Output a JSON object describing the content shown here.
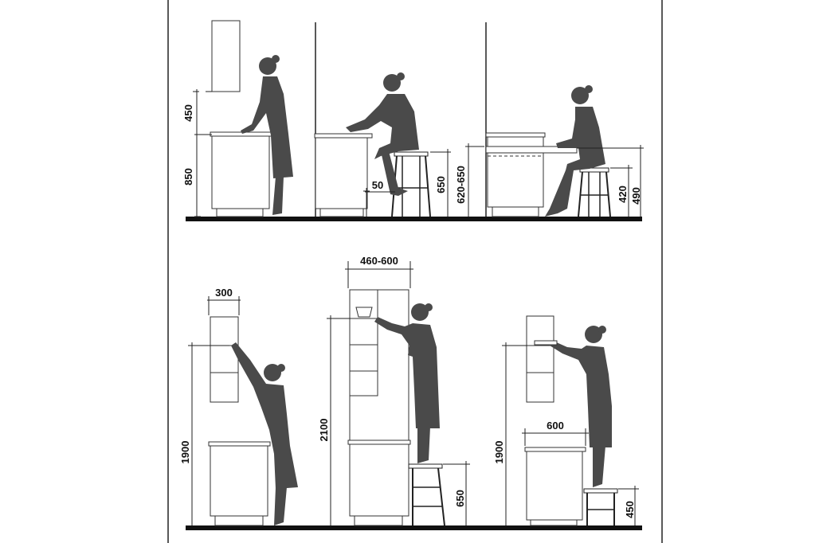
{
  "top_row": {
    "panel1": {
      "upper_clearance": "450",
      "counter_height": "850"
    },
    "panel2": {
      "knee_offset": "50",
      "stool_height": "650",
      "counter_height": "620-650"
    },
    "panel3": {
      "stool_height": "420",
      "table_height": "490"
    }
  },
  "bottom_row": {
    "panel1": {
      "cabinet_depth": "300",
      "reach_height": "1900"
    },
    "panel2": {
      "cabinet_depth": "460-600",
      "reach_height": "2100",
      "step_height": "650"
    },
    "panel3": {
      "counter_depth": "600",
      "reach_height": "1900",
      "step_height": "450"
    }
  },
  "colors": {
    "figure": "#4a4a4a",
    "floor": "#111111",
    "line": "#222222"
  }
}
